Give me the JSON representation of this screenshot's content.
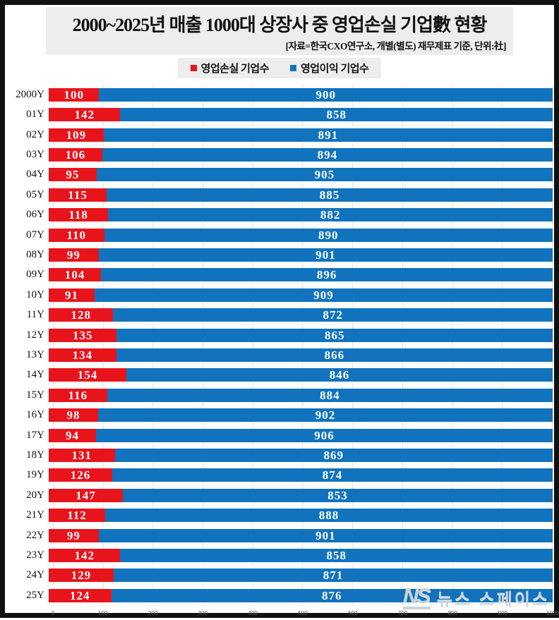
{
  "title": "2000~2025년 매출 1000대 상장사 중 영업손실 기업數 현황",
  "subtitle": "[자료=한국CXO연구소, 개별(별도) 재무제표 기준, 단위:社]",
  "watermark": {
    "logo": "NS",
    "text": "뉴스 스페이스"
  },
  "chart_data": {
    "type": "bar",
    "orientation": "horizontal",
    "stacked": true,
    "title": "2000~2025년 매출 1000대 상장사 중 영업손실 기업數 현황",
    "source_note": "[자료=한국CXO연구소, 개별(별도) 재무제표 기준, 단위:社]",
    "categories": [
      "2000Y",
      "01Y",
      "02Y",
      "03Y",
      "04Y",
      "05Y",
      "06Y",
      "07Y",
      "08Y",
      "09Y",
      "10Y",
      "11Y",
      "12Y",
      "13Y",
      "14Y",
      "15Y",
      "16Y",
      "17Y",
      "18Y",
      "19Y",
      "20Y",
      "21Y",
      "22Y",
      "23Y",
      "24Y",
      "25Y"
    ],
    "series": [
      {
        "name": "영업손실 기업수",
        "color": "#e8141c",
        "values": [
          100,
          142,
          109,
          106,
          95,
          115,
          118,
          110,
          99,
          104,
          91,
          128,
          135,
          134,
          154,
          116,
          98,
          94,
          131,
          126,
          147,
          112,
          99,
          142,
          129,
          124
        ]
      },
      {
        "name": "영업이익 기업수",
        "color": "#1173bd",
        "values": [
          900,
          858,
          891,
          894,
          905,
          885,
          882,
          890,
          901,
          896,
          909,
          872,
          865,
          866,
          846,
          884,
          902,
          906,
          869,
          874,
          853,
          888,
          901,
          858,
          871,
          876
        ]
      }
    ],
    "xlim": [
      0,
      1000
    ],
    "xticks": [
      0,
      100,
      200,
      300,
      400,
      500,
      600,
      700,
      800,
      900,
      1000
    ],
    "grid": true,
    "legend_position": "top",
    "value_labels": "inside-center"
  }
}
